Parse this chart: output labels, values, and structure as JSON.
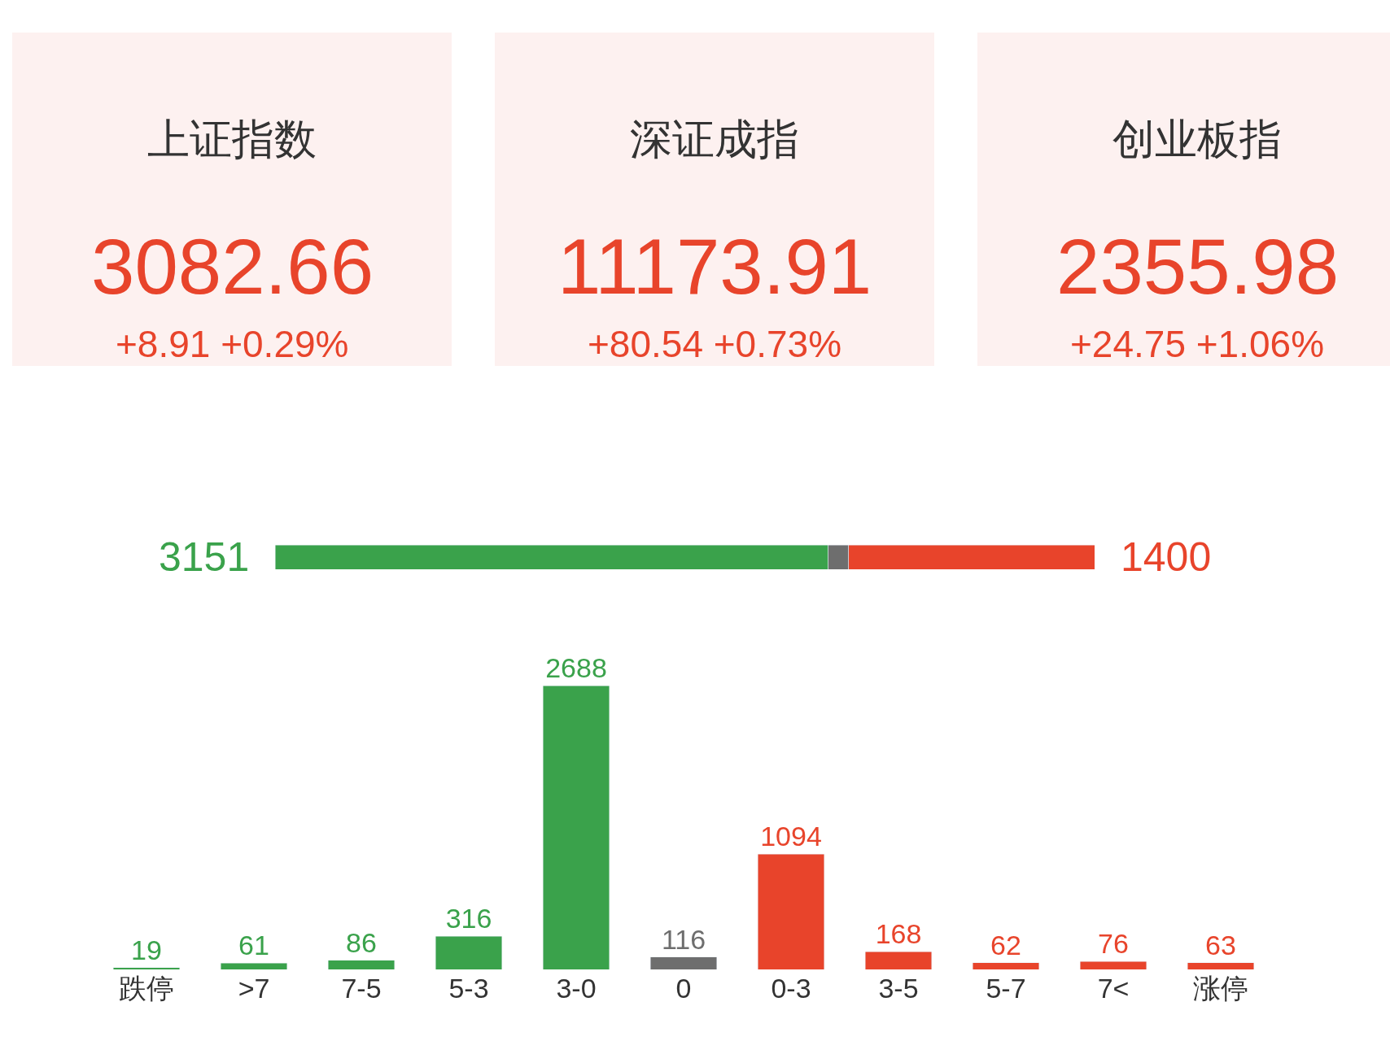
{
  "chart_data": [
    {
      "type": "other",
      "title": "上证指数",
      "annotations": [
        "3082.66",
        "+8.91 +0.29%"
      ]
    },
    {
      "type": "other",
      "title": "深证成指",
      "annotations": [
        "11173.91",
        "+80.54 +0.73%"
      ]
    },
    {
      "type": "other",
      "title": "创业板指",
      "annotations": [
        "2355.98",
        "+24.75 +1.06%"
      ]
    },
    {
      "type": "bar",
      "orientation": "horizontal",
      "stacked": true,
      "categories": [
        null
      ],
      "series": [
        {
          "color": "#3aa24b",
          "values": [
            3151
          ],
          "value_labels": [
            "3151"
          ]
        },
        {
          "color": "#6e6e6e",
          "values": [
            116
          ],
          "value_labels": [
            null
          ]
        },
        {
          "color": "#e8442b",
          "values": [
            1400
          ],
          "value_labels": [
            "1400"
          ]
        }
      ]
    },
    {
      "type": "bar",
      "categories": [
        "跌停",
        ">7",
        "7-5",
        "5-3",
        "3-0",
        "0",
        "0-3",
        "3-5",
        "5-7",
        "7<",
        "涨停"
      ],
      "values": [
        19,
        61,
        86,
        316,
        2688,
        116,
        1094,
        168,
        62,
        76,
        63
      ],
      "colors": [
        "#3aa24b",
        "#3aa24b",
        "#3aa24b",
        "#3aa24b",
        "#3aa24b",
        "#6e6e6e",
        "#e8442b",
        "#e8442b",
        "#e8442b",
        "#e8442b",
        "#e8442b"
      ],
      "data_labels": true
    }
  ]
}
